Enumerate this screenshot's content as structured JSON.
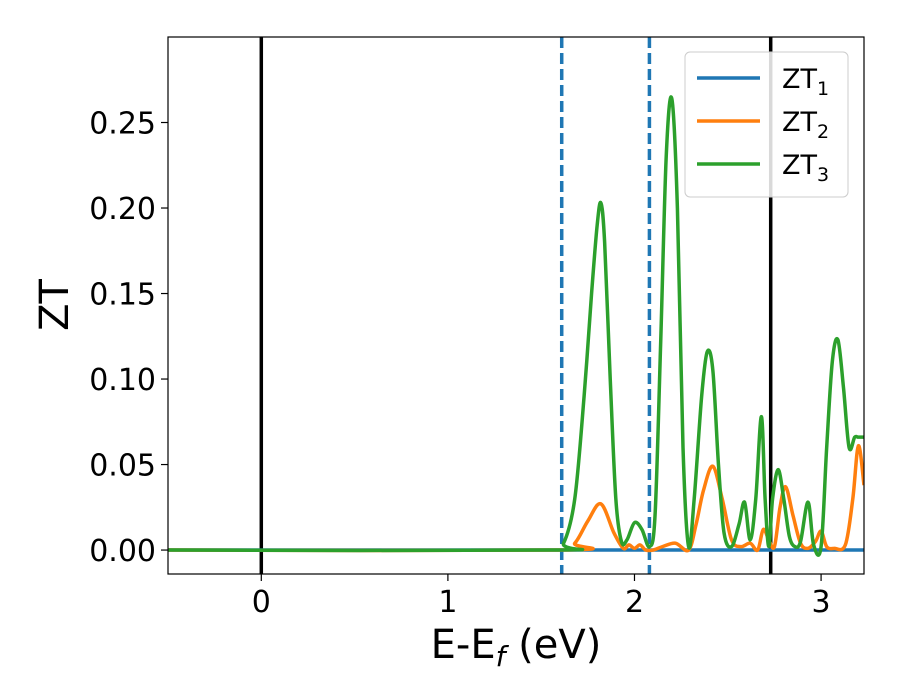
{
  "chart_data": {
    "type": "line",
    "xlabel": {
      "main": "E-E",
      "sub": "f",
      "unit": " (eV)"
    },
    "ylabel": "ZT",
    "xlim": [
      -0.5,
      3.23
    ],
    "ylim": [
      -0.014,
      0.3
    ],
    "x_ticks": [
      0,
      1,
      2,
      3
    ],
    "x_tick_labels": [
      "0",
      "1",
      "2",
      "3"
    ],
    "y_ticks": [
      0,
      0.05,
      0.1,
      0.15,
      0.2,
      0.25
    ],
    "y_tick_labels": [
      "0.00",
      "0.05",
      "0.10",
      "0.15",
      "0.20",
      "0.25"
    ],
    "grid": false,
    "legend_position": "top-right",
    "vertical_lines": [
      {
        "x": 0.0,
        "style": "solid",
        "color": "#000000"
      },
      {
        "x": 1.61,
        "style": "dashed",
        "color": "#1f77b4"
      },
      {
        "x": 2.08,
        "style": "dashed",
        "color": "#1f77b4"
      },
      {
        "x": 2.73,
        "style": "solid",
        "color": "#000000"
      }
    ],
    "series": [
      {
        "name": "ZT",
        "sub": "1",
        "color": "#1f77b4",
        "x": [
          -0.5,
          3.23
        ],
        "y": [
          0.0,
          0.0
        ]
      },
      {
        "name": "ZT",
        "sub": "2",
        "color": "#ff7f0e",
        "x": [
          -0.5,
          1.6,
          1.68,
          1.75,
          1.82,
          1.89,
          1.94,
          1.97,
          2.0,
          2.03,
          2.06,
          2.1,
          2.15,
          2.22,
          2.29,
          2.33,
          2.37,
          2.42,
          2.47,
          2.52,
          2.57,
          2.62,
          2.66,
          2.69,
          2.72,
          2.75,
          2.78,
          2.81,
          2.85,
          2.89,
          2.93,
          2.97,
          3.0,
          3.03,
          3.07,
          3.13,
          3.17,
          3.2,
          3.23
        ],
        "y": [
          0.0,
          0.0,
          0.004,
          0.017,
          0.027,
          0.01,
          0.001,
          0.003,
          0.001,
          0.003,
          0.0,
          0.0,
          0.002,
          0.004,
          0.0,
          0.015,
          0.035,
          0.049,
          0.03,
          0.006,
          0.002,
          0.004,
          0.0,
          0.012,
          0.006,
          0.002,
          0.025,
          0.037,
          0.02,
          0.004,
          0.001,
          0.005,
          0.011,
          0.002,
          0.001,
          0.003,
          0.03,
          0.061,
          0.038
        ]
      },
      {
        "name": "ZT",
        "sub": "3",
        "color": "#2ca02c",
        "x": [
          -0.5,
          1.55,
          1.62,
          1.68,
          1.73,
          1.77,
          1.8,
          1.82,
          1.84,
          1.87,
          1.9,
          1.93,
          1.96,
          2.0,
          2.04,
          2.08,
          2.11,
          2.14,
          2.17,
          2.2,
          2.23,
          2.26,
          2.29,
          2.32,
          2.36,
          2.39,
          2.42,
          2.45,
          2.48,
          2.52,
          2.56,
          2.59,
          2.62,
          2.65,
          2.68,
          2.7,
          2.72,
          2.74,
          2.77,
          2.8,
          2.83,
          2.86,
          2.89,
          2.93,
          2.96,
          3.0,
          3.03,
          3.06,
          3.09,
          3.12,
          3.15,
          3.18,
          3.2,
          3.23
        ],
        "y": [
          0.0,
          0.0,
          0.004,
          0.03,
          0.09,
          0.15,
          0.19,
          0.203,
          0.18,
          0.1,
          0.03,
          0.005,
          0.006,
          0.016,
          0.012,
          0.002,
          0.02,
          0.12,
          0.23,
          0.264,
          0.2,
          0.06,
          0.002,
          0.03,
          0.09,
          0.116,
          0.105,
          0.05,
          0.01,
          0.002,
          0.015,
          0.028,
          0.006,
          0.03,
          0.078,
          0.03,
          0.002,
          0.03,
          0.047,
          0.03,
          0.008,
          0.002,
          0.005,
          0.028,
          0.003,
          0.002,
          0.06,
          0.11,
          0.123,
          0.095,
          0.06,
          0.066,
          0.066,
          0.066
        ]
      }
    ]
  }
}
